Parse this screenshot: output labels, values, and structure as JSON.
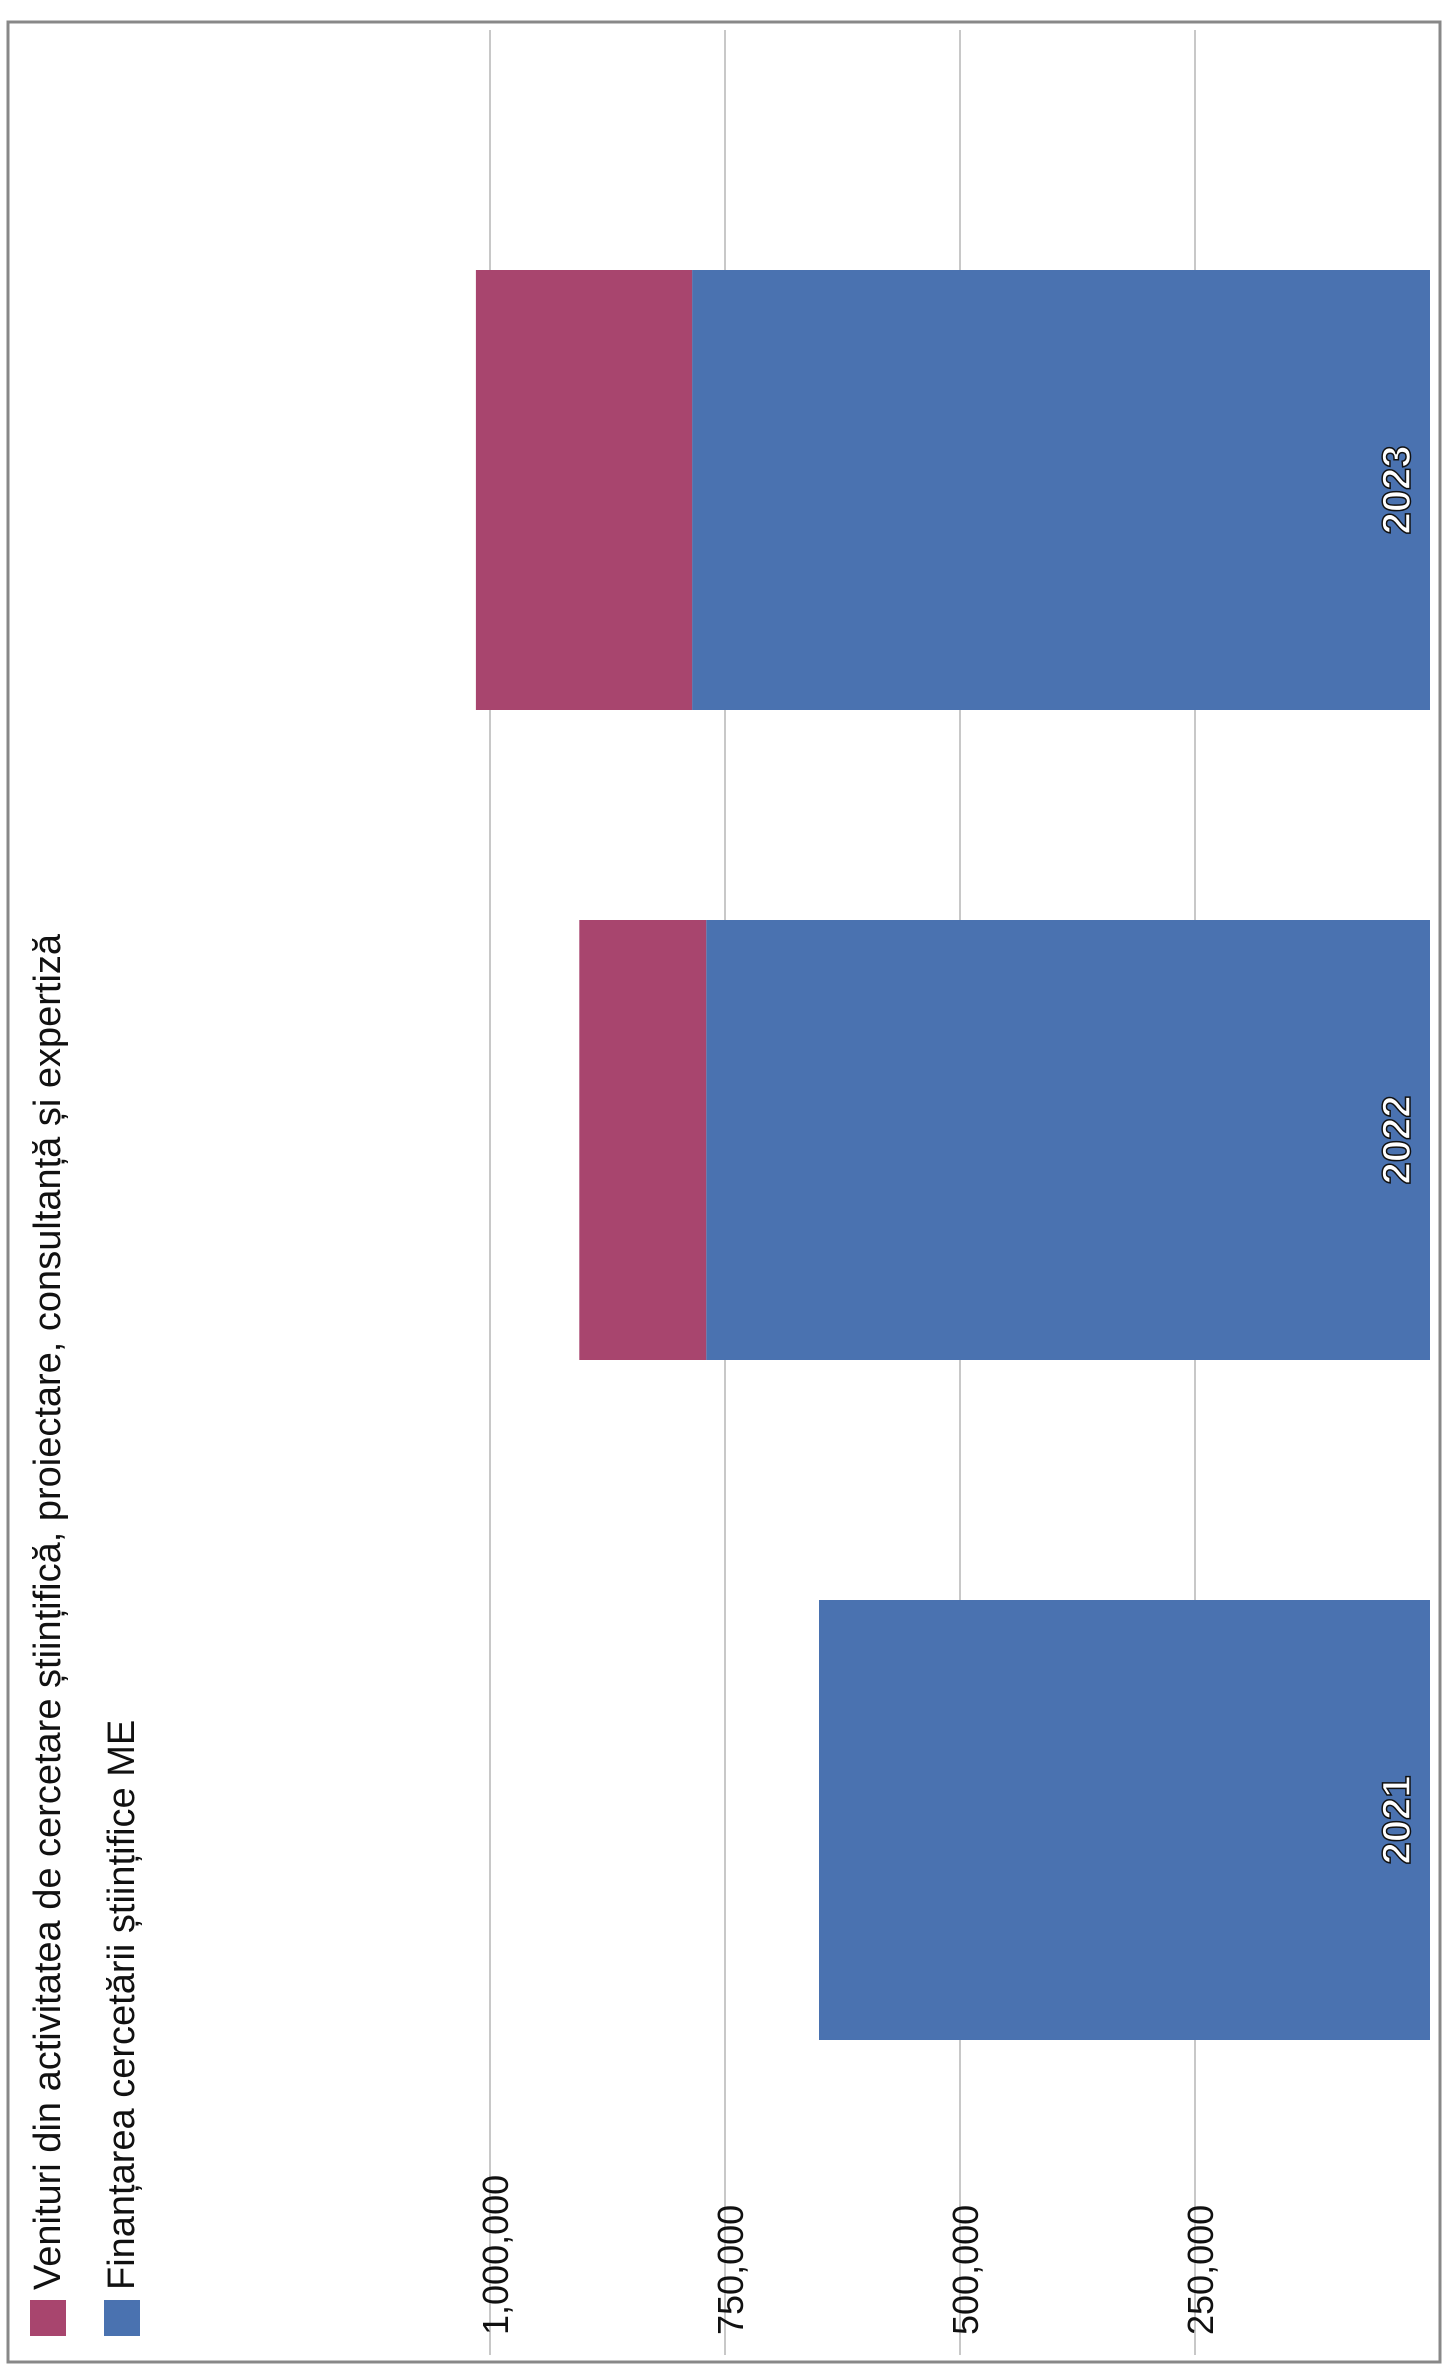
{
  "chart_data": {
    "type": "bar",
    "stacked": true,
    "orientation": "horizontal",
    "rotation": "page rotated 90 degrees counter-clockwise",
    "categories": [
      "2021",
      "2022",
      "2023"
    ],
    "series": [
      {
        "name": "Finanțarea cercetării științifice ME",
        "color": "#4a72b0",
        "values": [
          650000,
          770000,
          785000
        ]
      },
      {
        "name": "Venituri din activitatea de cercetare științifică, proiectare, consultanță și expertiză",
        "color": "#a8456e",
        "values": [
          0,
          135000,
          230000
        ]
      }
    ],
    "xlim": [
      0,
      1000000
    ],
    "ticks": [
      "250,000",
      "500,000",
      "750,000",
      "1,000,000"
    ],
    "grid": true,
    "legend_position": "top",
    "colors": {
      "grid": "#c8c8c8",
      "frame": "#888888",
      "label_fill": "#ffffff",
      "label_stroke": "#111111"
    }
  }
}
